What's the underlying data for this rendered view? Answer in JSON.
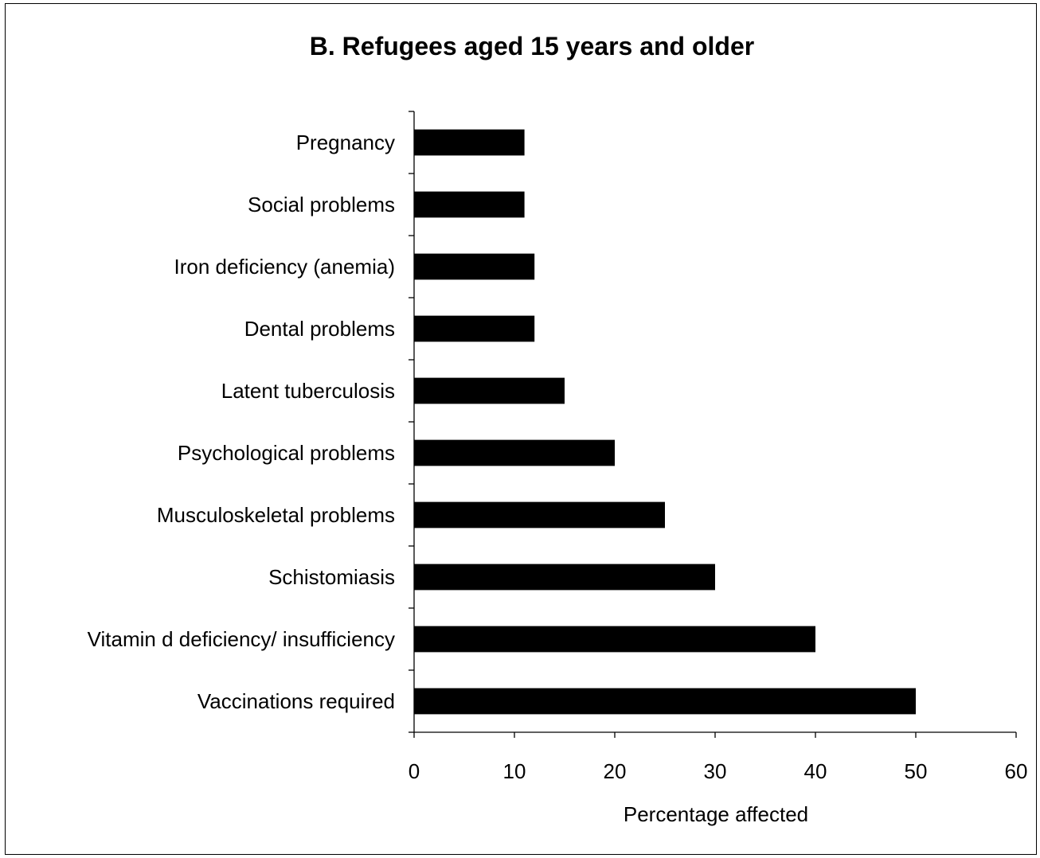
{
  "chart_data": {
    "type": "bar",
    "orientation": "horizontal",
    "title": "B.  Refugees aged 15 years and older",
    "xlabel": "Percentage affected",
    "ylabel": "",
    "xlim": [
      0,
      60
    ],
    "xticks": [
      0,
      10,
      20,
      30,
      40,
      50,
      60
    ],
    "grid": false,
    "categories": [
      "Pregnancy",
      "Social problems",
      "Iron deficiency (anemia)",
      "Dental problems",
      "Latent tuberculosis",
      "Psychological problems",
      "Musculoskeletal problems",
      "Schistomiasis",
      "Vitamin d deficiency/ insufficiency",
      "Vaccinations required"
    ],
    "values": [
      11,
      11,
      12,
      12,
      15,
      20,
      25,
      30,
      40,
      50
    ],
    "bar_color": "#000000"
  }
}
